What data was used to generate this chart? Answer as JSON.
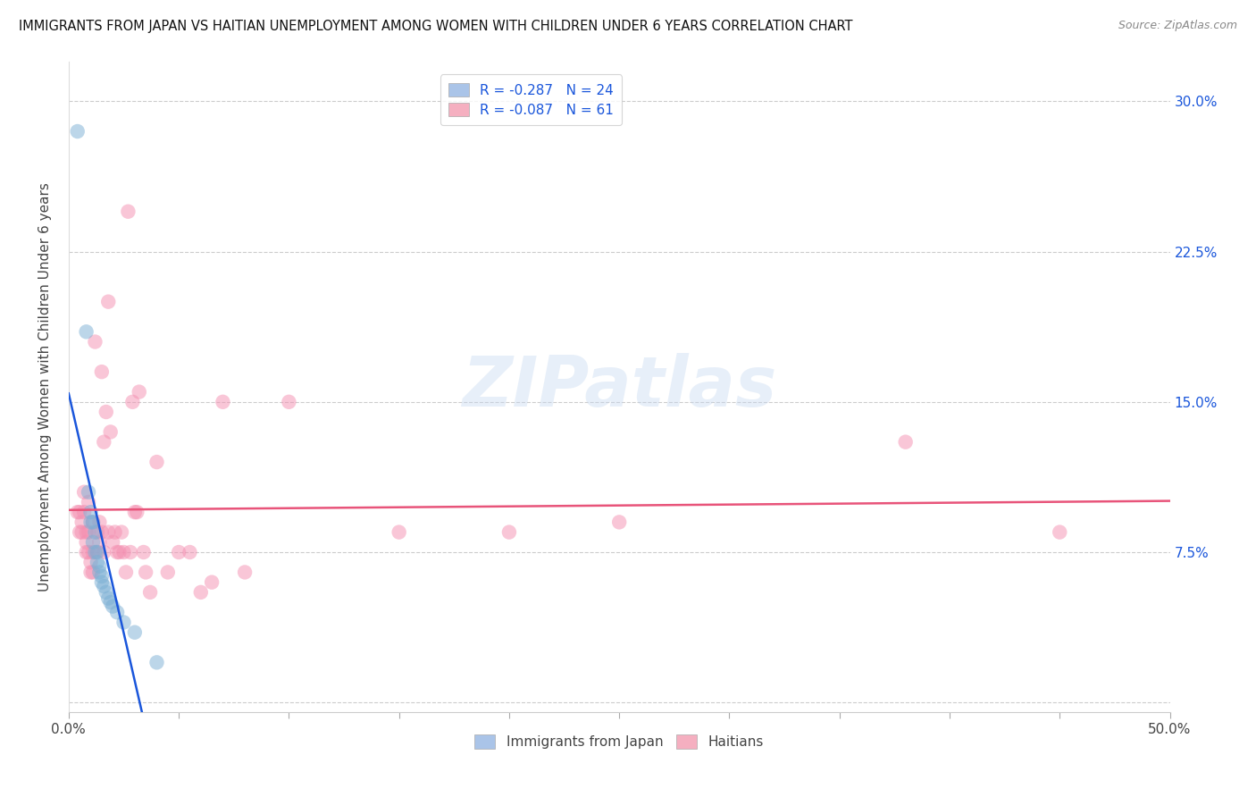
{
  "title": "IMMIGRANTS FROM JAPAN VS HAITIAN UNEMPLOYMENT AMONG WOMEN WITH CHILDREN UNDER 6 YEARS CORRELATION CHART",
  "source": "Source: ZipAtlas.com",
  "ylabel": "Unemployment Among Women with Children Under 6 years",
  "ytick_values": [
    0,
    0.075,
    0.15,
    0.225,
    0.3
  ],
  "ytick_labels_right": [
    "",
    "7.5%",
    "15.0%",
    "22.5%",
    "30.0%"
  ],
  "xlim": [
    0,
    0.5
  ],
  "ylim": [
    -0.005,
    0.32
  ],
  "watermark": "ZIPatlas",
  "japan_color": "#7bafd4",
  "haiti_color": "#f48fb1",
  "trend_japan_color": "#1a56db",
  "trend_haiti_color": "#e8547a",
  "legend_patch_japan": "#aac4e8",
  "legend_patch_haiti": "#f5afc0",
  "japan_points": [
    [
      0.004,
      0.285
    ],
    [
      0.008,
      0.185
    ],
    [
      0.009,
      0.105
    ],
    [
      0.01,
      0.095
    ],
    [
      0.01,
      0.09
    ],
    [
      0.011,
      0.09
    ],
    [
      0.011,
      0.08
    ],
    [
      0.012,
      0.085
    ],
    [
      0.012,
      0.075
    ],
    [
      0.013,
      0.075
    ],
    [
      0.013,
      0.07
    ],
    [
      0.014,
      0.068
    ],
    [
      0.014,
      0.065
    ],
    [
      0.015,
      0.063
    ],
    [
      0.015,
      0.06
    ],
    [
      0.016,
      0.058
    ],
    [
      0.017,
      0.055
    ],
    [
      0.018,
      0.052
    ],
    [
      0.019,
      0.05
    ],
    [
      0.02,
      0.048
    ],
    [
      0.022,
      0.045
    ],
    [
      0.025,
      0.04
    ],
    [
      0.03,
      0.035
    ],
    [
      0.04,
      0.02
    ]
  ],
  "haiti_points": [
    [
      0.004,
      0.095
    ],
    [
      0.005,
      0.095
    ],
    [
      0.005,
      0.085
    ],
    [
      0.006,
      0.09
    ],
    [
      0.006,
      0.085
    ],
    [
      0.007,
      0.105
    ],
    [
      0.007,
      0.095
    ],
    [
      0.008,
      0.085
    ],
    [
      0.008,
      0.08
    ],
    [
      0.008,
      0.075
    ],
    [
      0.009,
      0.1
    ],
    [
      0.009,
      0.085
    ],
    [
      0.009,
      0.075
    ],
    [
      0.01,
      0.07
    ],
    [
      0.01,
      0.065
    ],
    [
      0.011,
      0.09
    ],
    [
      0.011,
      0.075
    ],
    [
      0.011,
      0.065
    ],
    [
      0.012,
      0.18
    ],
    [
      0.013,
      0.085
    ],
    [
      0.013,
      0.075
    ],
    [
      0.014,
      0.09
    ],
    [
      0.014,
      0.08
    ],
    [
      0.015,
      0.085
    ],
    [
      0.015,
      0.165
    ],
    [
      0.016,
      0.075
    ],
    [
      0.016,
      0.13
    ],
    [
      0.017,
      0.145
    ],
    [
      0.018,
      0.2
    ],
    [
      0.018,
      0.085
    ],
    [
      0.019,
      0.135
    ],
    [
      0.02,
      0.08
    ],
    [
      0.021,
      0.085
    ],
    [
      0.022,
      0.075
    ],
    [
      0.023,
      0.075
    ],
    [
      0.024,
      0.085
    ],
    [
      0.025,
      0.075
    ],
    [
      0.026,
      0.065
    ],
    [
      0.027,
      0.245
    ],
    [
      0.028,
      0.075
    ],
    [
      0.029,
      0.15
    ],
    [
      0.03,
      0.095
    ],
    [
      0.031,
      0.095
    ],
    [
      0.032,
      0.155
    ],
    [
      0.034,
      0.075
    ],
    [
      0.035,
      0.065
    ],
    [
      0.037,
      0.055
    ],
    [
      0.04,
      0.12
    ],
    [
      0.045,
      0.065
    ],
    [
      0.05,
      0.075
    ],
    [
      0.055,
      0.075
    ],
    [
      0.06,
      0.055
    ],
    [
      0.065,
      0.06
    ],
    [
      0.07,
      0.15
    ],
    [
      0.08,
      0.065
    ],
    [
      0.1,
      0.15
    ],
    [
      0.15,
      0.085
    ],
    [
      0.2,
      0.085
    ],
    [
      0.25,
      0.09
    ],
    [
      0.38,
      0.13
    ],
    [
      0.45,
      0.085
    ]
  ]
}
